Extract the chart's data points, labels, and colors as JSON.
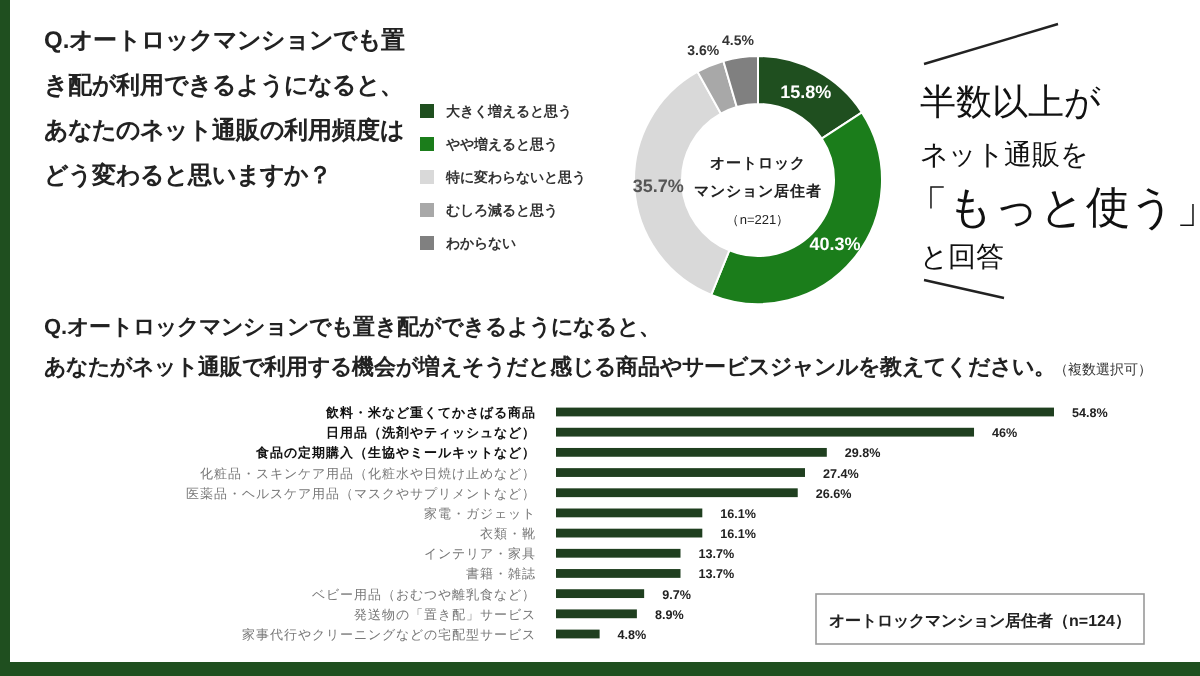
{
  "chart_data": [
    {
      "type": "donut",
      "title": "Q.オートロックマンションでも置き配が利用できるようになると、あなたのネット通販の利用頻度はどう変わると思いますか？",
      "categories": [
        "大きく増えると思う",
        "やや増えると思う",
        "特に変わらないと思う",
        "むしろ減ると思う",
        "わからない"
      ],
      "values": [
        15.8,
        40.3,
        35.7,
        3.6,
        4.5
      ],
      "colors": [
        "#1f4f1f",
        "#1b7d1b",
        "#d9d9d9",
        "#a8a8a8",
        "#808080"
      ],
      "value_labels": [
        "15.8%",
        "40.3%",
        "35.7%",
        "3.6%",
        "4.5%"
      ],
      "legend": "left",
      "annotations": [
        "オートロック",
        "マンション居住者",
        "（n=221）",
        "半数以上が",
        "ネット通販を",
        "「もっと使う」",
        "と回答"
      ]
    },
    {
      "type": "bar",
      "orientation": "horizontal",
      "title": "Q.オートロックマンションでも置き配ができるようになると、あなたがネット通販で利用する機会が増えそうだと感じる商品やサービスジャンルを教えてください。",
      "subtitle": "（複数選択可）",
      "categories": [
        "飲料・米など重くてかさばる商品",
        "日用品（洗剤やティッシュなど）",
        "食品の定期購入（生協やミールキットなど）",
        "化粧品・スキンケア用品（化粧水や日焼け止めなど）",
        "医薬品・ヘルスケア用品（マスクやサプリメントなど）",
        "家電・ガジェット",
        "衣類・靴",
        "インテリア・家具",
        "書籍・雑誌",
        "ベビー用品（おむつや離乳食など）",
        "発送物の「置き配」サービス",
        "家事代行やクリーニングなどの宅配型サービス"
      ],
      "values": [
        54.8,
        46,
        29.8,
        27.4,
        26.6,
        16.1,
        16.1,
        13.7,
        13.7,
        9.7,
        8.9,
        4.8
      ],
      "value_labels": [
        "54.8%",
        "46%",
        "29.8%",
        "27.4%",
        "26.6%",
        "16.1%",
        "16.1%",
        "13.7%",
        "13.7%",
        "9.7%",
        "8.9%",
        "4.8%"
      ],
      "color": "#1f3f1f",
      "annotations": [
        "オートロックマンション居住者（n=124）"
      ]
    }
  ]
}
